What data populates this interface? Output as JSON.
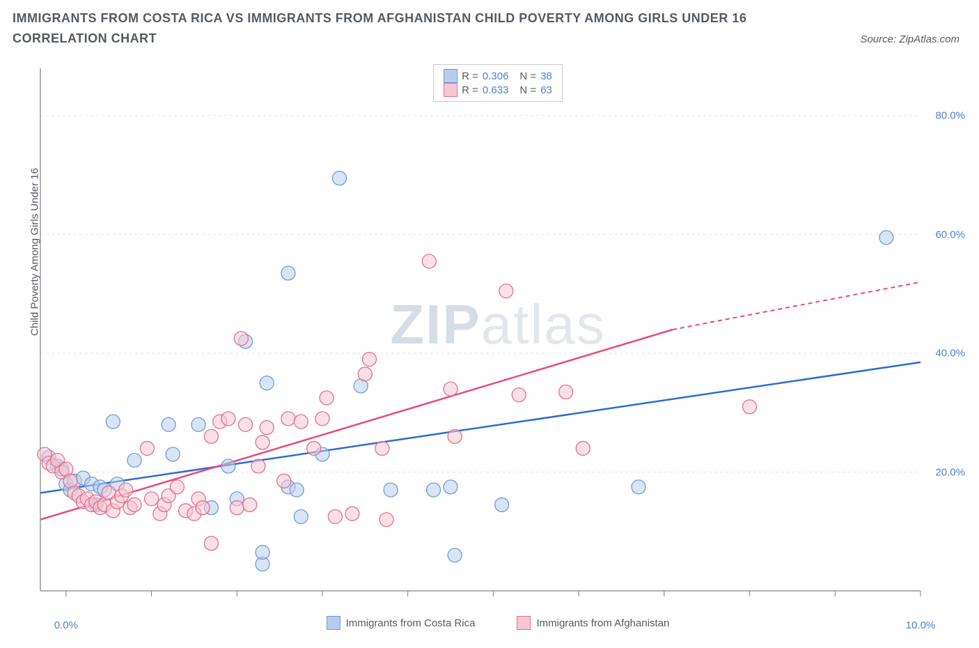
{
  "title": "IMMIGRANTS FROM COSTA RICA VS IMMIGRANTS FROM AFGHANISTAN CHILD POVERTY AMONG GIRLS UNDER 16 CORRELATION CHART",
  "source_label": "Source: ZipAtlas.com",
  "ylabel": "Child Poverty Among Girls Under 16",
  "watermark_a": "ZIP",
  "watermark_b": "atlas",
  "chart": {
    "type": "scatter",
    "background_color": "#ffffff",
    "grid_color": "#e4e4e4",
    "axis_color": "#808080",
    "tick_color": "#808080",
    "tick_len": 8,
    "label_color": "#4f7fc9",
    "text_color": "#555a60",
    "marker_radius": 10,
    "marker_opacity": 0.55,
    "trend_width": 2.5,
    "xlim": [
      -0.3,
      10.0
    ],
    "ylim": [
      0,
      88
    ],
    "grid_y": [
      20,
      40,
      60,
      80
    ],
    "xtick_minor": [
      1,
      2,
      3,
      4,
      5,
      6,
      7,
      8,
      9
    ],
    "xticks": [
      {
        "v": 0.0,
        "label": "0.0%"
      },
      {
        "v": 10.0,
        "label": "10.0%"
      }
    ],
    "yticks": [
      {
        "v": 20,
        "label": "20.0%"
      },
      {
        "v": 40,
        "label": "40.0%"
      },
      {
        "v": 60,
        "label": "60.0%"
      },
      {
        "v": 80,
        "label": "80.0%"
      }
    ],
    "series": [
      {
        "name": "Immigrants from Costa Rica",
        "R": "0.306",
        "N": "38",
        "fill": "#b9cdeb",
        "stroke": "#6f9bd8",
        "trend_color": "#2e6bd0",
        "trend": {
          "x1": -0.3,
          "y1": 16.5,
          "x2": 10.0,
          "y2": 38.5,
          "dash_after": 10.0
        },
        "points": [
          [
            -0.2,
            22.5
          ],
          [
            -0.1,
            21
          ],
          [
            -0.05,
            20.5
          ],
          [
            0.0,
            18
          ],
          [
            0.05,
            17
          ],
          [
            0.1,
            18.5
          ],
          [
            0.2,
            19
          ],
          [
            0.3,
            18
          ],
          [
            0.35,
            14.5
          ],
          [
            0.4,
            17.5
          ],
          [
            0.45,
            17
          ],
          [
            0.55,
            28.5
          ],
          [
            0.6,
            18
          ],
          [
            0.8,
            22
          ],
          [
            1.2,
            28
          ],
          [
            1.25,
            23
          ],
          [
            1.55,
            28
          ],
          [
            1.9,
            21
          ],
          [
            2.0,
            15.5
          ],
          [
            2.1,
            42
          ],
          [
            2.3,
            4.5
          ],
          [
            2.3,
            6.5
          ],
          [
            2.35,
            35
          ],
          [
            2.6,
            53.5
          ],
          [
            2.6,
            17.5
          ],
          [
            2.7,
            17
          ],
          [
            2.75,
            12.5
          ],
          [
            3.0,
            23
          ],
          [
            3.2,
            69.5
          ],
          [
            3.45,
            34.5
          ],
          [
            3.8,
            17
          ],
          [
            4.3,
            17
          ],
          [
            4.5,
            17.5
          ],
          [
            4.55,
            6
          ],
          [
            5.1,
            14.5
          ],
          [
            6.7,
            17.5
          ],
          [
            9.6,
            59.5
          ],
          [
            1.7,
            14
          ]
        ]
      },
      {
        "name": "Immigrants from Afghanistan",
        "R": "0.633",
        "N": "63",
        "fill": "#f5c7d3",
        "stroke": "#e36f8f",
        "trend_color": "#e74a78",
        "trend": {
          "x1": -0.3,
          "y1": 12,
          "x2": 7.1,
          "y2": 44,
          "dash_after": 7.1,
          "x3": 10.0,
          "y3": 52
        },
        "points": [
          [
            -0.25,
            23
          ],
          [
            -0.2,
            21.5
          ],
          [
            -0.15,
            21
          ],
          [
            -0.1,
            22
          ],
          [
            -0.05,
            20
          ],
          [
            0.0,
            20.5
          ],
          [
            0.05,
            18.5
          ],
          [
            0.1,
            16.5
          ],
          [
            0.15,
            16
          ],
          [
            0.2,
            15
          ],
          [
            0.25,
            15.5
          ],
          [
            0.3,
            14.5
          ],
          [
            0.35,
            15
          ],
          [
            0.4,
            14
          ],
          [
            0.45,
            14.5
          ],
          [
            0.5,
            16.5
          ],
          [
            0.55,
            13.5
          ],
          [
            0.6,
            15
          ],
          [
            0.65,
            16
          ],
          [
            0.7,
            17
          ],
          [
            0.75,
            14
          ],
          [
            0.8,
            14.5
          ],
          [
            0.95,
            24
          ],
          [
            1.0,
            15.5
          ],
          [
            1.1,
            13
          ],
          [
            1.15,
            14.5
          ],
          [
            1.2,
            16
          ],
          [
            1.3,
            17.5
          ],
          [
            1.4,
            13.5
          ],
          [
            1.5,
            13
          ],
          [
            1.55,
            15.5
          ],
          [
            1.6,
            14
          ],
          [
            1.7,
            26
          ],
          [
            1.7,
            8
          ],
          [
            1.8,
            28.5
          ],
          [
            1.9,
            29
          ],
          [
            2.0,
            14
          ],
          [
            2.05,
            42.5
          ],
          [
            2.1,
            28
          ],
          [
            2.15,
            14.5
          ],
          [
            2.25,
            21
          ],
          [
            2.3,
            25
          ],
          [
            2.35,
            27.5
          ],
          [
            2.55,
            18.5
          ],
          [
            2.6,
            29
          ],
          [
            2.75,
            28.5
          ],
          [
            2.9,
            24
          ],
          [
            3.0,
            29
          ],
          [
            3.05,
            32.5
          ],
          [
            3.15,
            12.5
          ],
          [
            3.35,
            13
          ],
          [
            3.5,
            36.5
          ],
          [
            3.55,
            39
          ],
          [
            3.7,
            24
          ],
          [
            3.75,
            12
          ],
          [
            4.25,
            55.5
          ],
          [
            4.5,
            34
          ],
          [
            4.55,
            26
          ],
          [
            5.15,
            50.5
          ],
          [
            5.3,
            33
          ],
          [
            5.85,
            33.5
          ],
          [
            6.05,
            24
          ],
          [
            8.0,
            31
          ]
        ]
      }
    ]
  },
  "legend_top": {
    "r_label": "R =",
    "n_label": "N ="
  },
  "legend_bottom_labels": [
    "Immigrants from Costa Rica",
    "Immigrants from Afghanistan"
  ]
}
